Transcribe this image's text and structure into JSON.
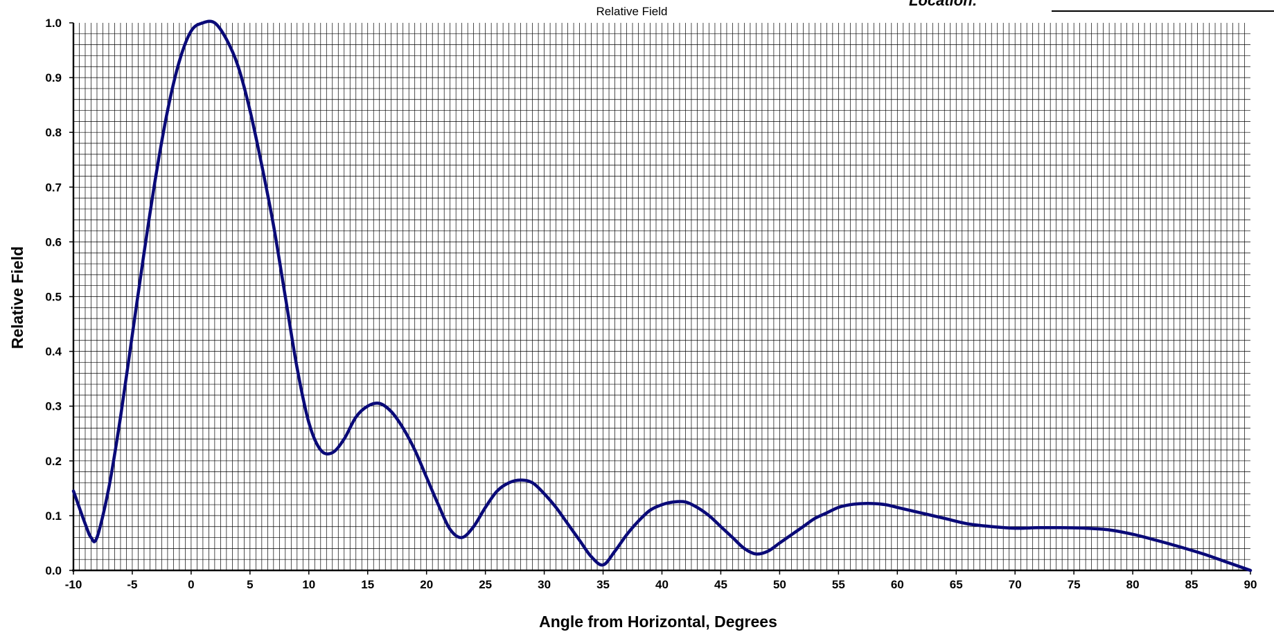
{
  "header": {
    "top_title": "Relative Field",
    "location_label": "Location:"
  },
  "colors": {
    "series_line": "#0a0a78",
    "grid": "#000000",
    "background": "#ffffff"
  },
  "chart_data": {
    "type": "line",
    "title": "Relative Field",
    "xlabel": "Angle from Horizontal, Degrees",
    "ylabel": "Relative Field",
    "xlim": [
      -10,
      90
    ],
    "ylim": [
      0,
      1.0
    ],
    "grid": true,
    "x_major_ticks": [
      -10,
      -5,
      0,
      5,
      10,
      15,
      20,
      25,
      30,
      35,
      40,
      45,
      50,
      55,
      60,
      65,
      70,
      75,
      80,
      85,
      90
    ],
    "x_tick_labels": [
      "-10",
      "-5",
      "0",
      "5",
      "10",
      "15",
      "20",
      "25",
      "30",
      "35",
      "40",
      "45",
      "50",
      "55",
      "60",
      "65",
      "70",
      "75",
      "80",
      "85",
      "90"
    ],
    "x_minor_step": 0.5,
    "y_major_ticks": [
      0,
      0.1,
      0.2,
      0.3,
      0.4,
      0.5,
      0.6,
      0.7,
      0.8,
      0.9,
      1.0
    ],
    "y_tick_labels": [
      "0.0",
      "0.1",
      "0.2",
      "0.3",
      "0.4",
      "0.5",
      "0.6",
      "0.7",
      "0.8",
      "0.9",
      "1.0"
    ],
    "y_minor_step": 0.02,
    "series": [
      {
        "x": [
          -10,
          -9,
          -8.5,
          -8,
          -7,
          -6,
          -5,
          -4,
          -3,
          -2,
          -1,
          0,
          1,
          2,
          3,
          4,
          5,
          6,
          7,
          8,
          9,
          10,
          11,
          12,
          13,
          14,
          15,
          16,
          17,
          18,
          19,
          20,
          21,
          22,
          23,
          24,
          25,
          26,
          27,
          28,
          29,
          30,
          31,
          32,
          33,
          34,
          35,
          36,
          37,
          38,
          39,
          40,
          41,
          42,
          43,
          44,
          45,
          46,
          47,
          48,
          49,
          50,
          51,
          52,
          53,
          54,
          55,
          56,
          57,
          58,
          59,
          60,
          62,
          64,
          66,
          68,
          70,
          72,
          74,
          76,
          78,
          80,
          82,
          84,
          86,
          88,
          90
        ],
        "values": [
          0.145,
          0.085,
          0.06,
          0.06,
          0.15,
          0.28,
          0.43,
          0.58,
          0.72,
          0.84,
          0.93,
          0.985,
          1.0,
          1.0,
          0.97,
          0.92,
          0.84,
          0.74,
          0.63,
          0.5,
          0.37,
          0.27,
          0.22,
          0.215,
          0.24,
          0.28,
          0.3,
          0.305,
          0.29,
          0.26,
          0.22,
          0.17,
          0.12,
          0.075,
          0.06,
          0.08,
          0.115,
          0.145,
          0.16,
          0.165,
          0.16,
          0.14,
          0.115,
          0.085,
          0.055,
          0.025,
          0.01,
          0.035,
          0.065,
          0.09,
          0.11,
          0.12,
          0.125,
          0.125,
          0.115,
          0.1,
          0.08,
          0.06,
          0.04,
          0.03,
          0.035,
          0.05,
          0.065,
          0.08,
          0.095,
          0.105,
          0.115,
          0.12,
          0.122,
          0.122,
          0.12,
          0.115,
          0.105,
          0.095,
          0.085,
          0.08,
          0.077,
          0.078,
          0.078,
          0.077,
          0.074,
          0.066,
          0.055,
          0.043,
          0.03,
          0.015,
          0.0
        ]
      }
    ]
  }
}
